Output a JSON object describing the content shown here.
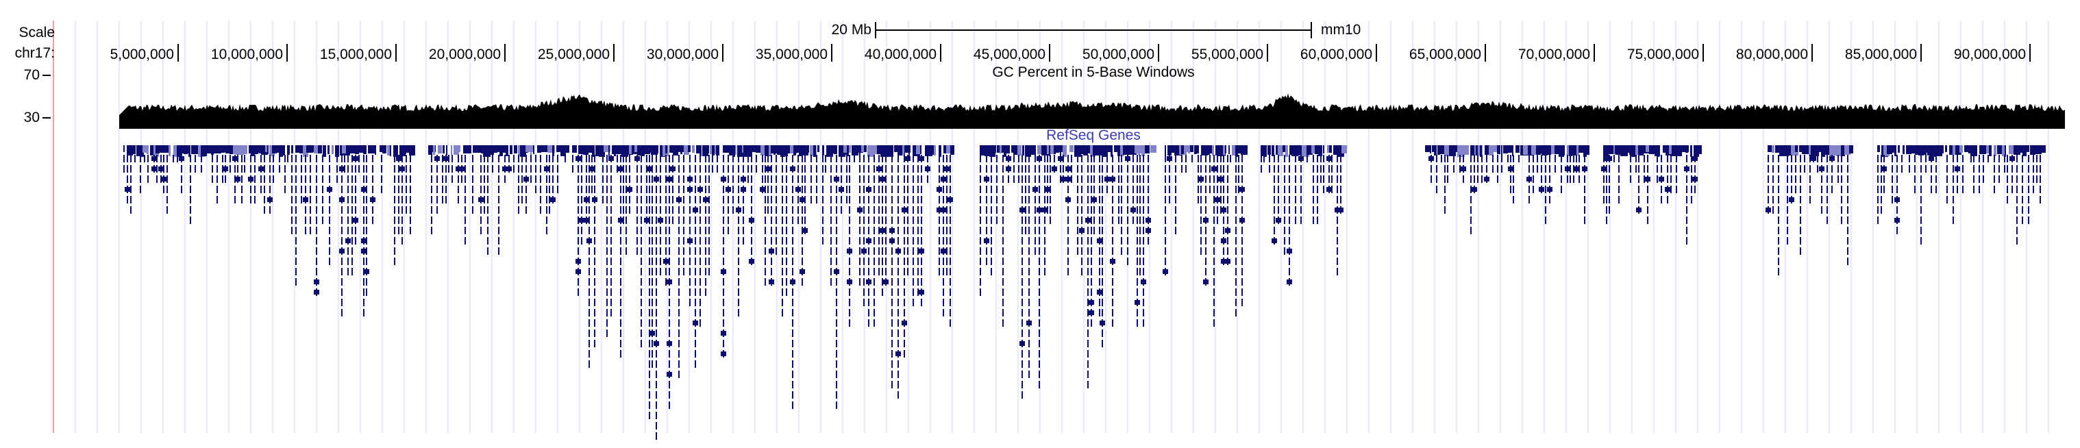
{
  "labels": {
    "scale": "Scale",
    "chrom": "chr17:",
    "y_max": "70",
    "y_min": "30"
  },
  "scale_bar": {
    "length_label": "20 Mb",
    "assembly": "mm10"
  },
  "ruler": {
    "ticks": [
      {
        "pos": 5000000,
        "label": "5,000,000"
      },
      {
        "pos": 10000000,
        "label": "10,000,000"
      },
      {
        "pos": 15000000,
        "label": "15,000,000"
      },
      {
        "pos": 20000000,
        "label": "20,000,000"
      },
      {
        "pos": 25000000,
        "label": "25,000,000"
      },
      {
        "pos": 30000000,
        "label": "30,000,000"
      },
      {
        "pos": 35000000,
        "label": "35,000,000"
      },
      {
        "pos": 40000000,
        "label": "40,000,000"
      },
      {
        "pos": 45000000,
        "label": "45,000,000"
      },
      {
        "pos": 50000000,
        "label": "50,000,000"
      },
      {
        "pos": 55000000,
        "label": "55,000,000"
      },
      {
        "pos": 60000000,
        "label": "60,000,000"
      },
      {
        "pos": 65000000,
        "label": "65,000,000"
      },
      {
        "pos": 70000000,
        "label": "70,000,000"
      },
      {
        "pos": 75000000,
        "label": "75,000,000"
      },
      {
        "pos": 80000000,
        "label": "80,000,000"
      },
      {
        "pos": 85000000,
        "label": "85,000,000"
      },
      {
        "pos": 90000000,
        "label": "90,000,000"
      }
    ]
  },
  "tracks": {
    "gc": {
      "title": "GC Percent in 5-Base Windows"
    },
    "refseq": {
      "title": "RefSeq Genes"
    }
  },
  "colors": {
    "gene": "#0d0d6b",
    "gene_light": "#8484c8",
    "title": "#3b3bb0",
    "gc": "#000000",
    "grid": "#cfd4f0",
    "left_line": "#e7a0a0"
  }
}
